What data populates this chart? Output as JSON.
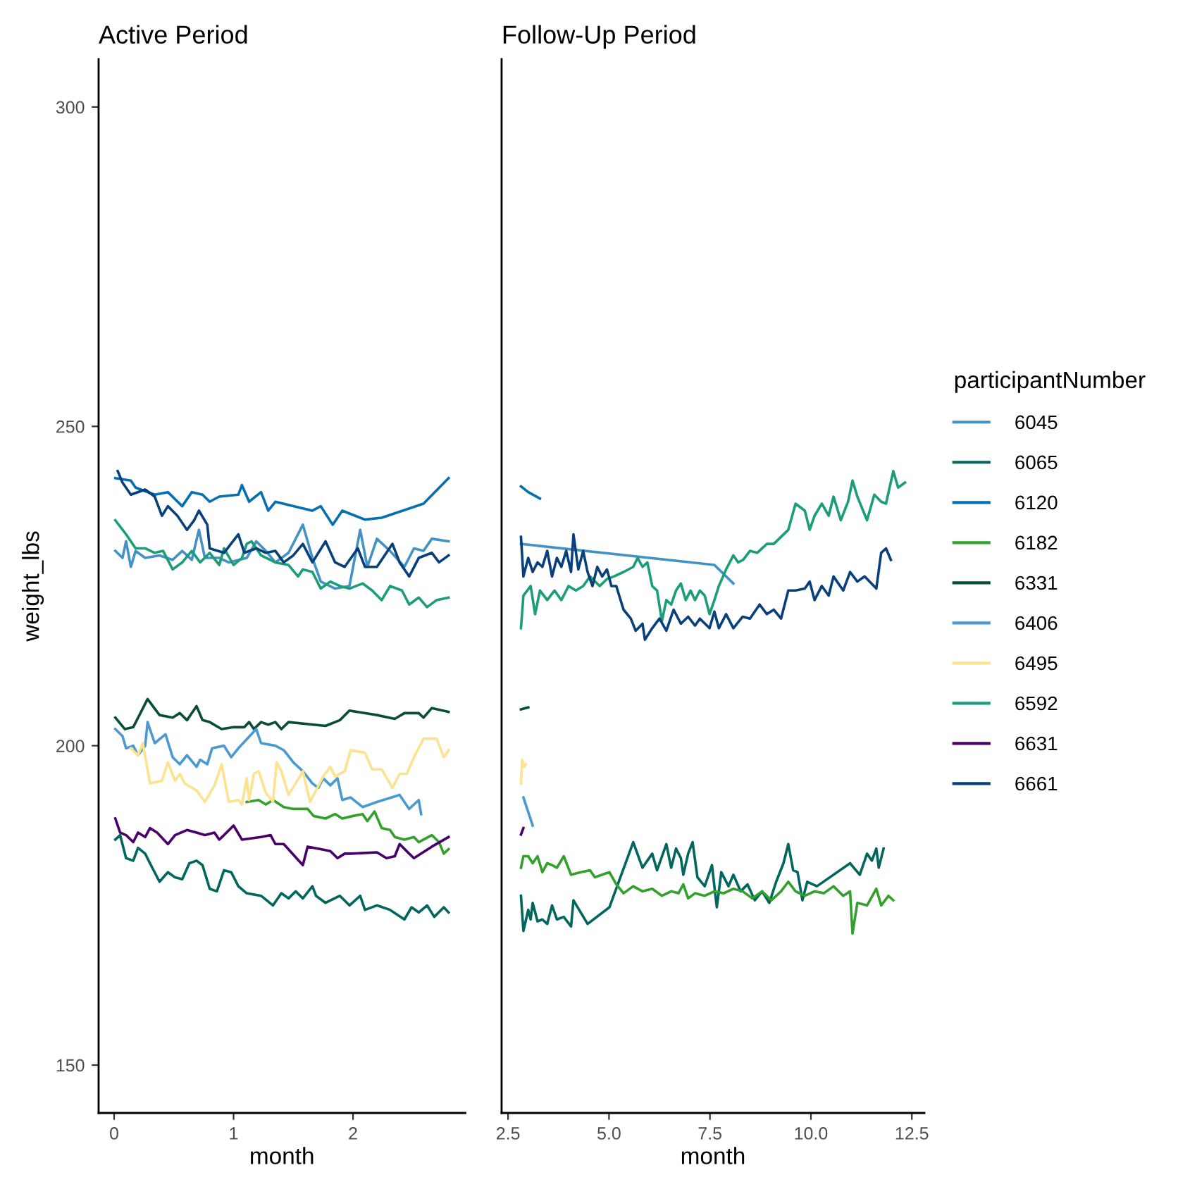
{
  "chart_data": [
    {
      "type": "line",
      "title": "Active Period",
      "xlabel": "month",
      "ylabel": "weight_lbs",
      "xlim": [
        -0.13,
        2.94
      ],
      "xticks": [
        0,
        1,
        2
      ],
      "ylim": [
        142.5,
        307.5
      ],
      "yticks": [
        150,
        200,
        250,
        300
      ],
      "grid": false,
      "legend": "right",
      "legend_title": "participantNumber",
      "series": [
        {
          "name": "6045",
          "color": "#4292c6",
          "x": [
            0.01,
            0.07,
            0.1,
            0.14,
            0.18,
            0.26,
            0.38,
            0.49,
            0.57,
            0.65,
            0.71,
            0.76,
            0.88,
            0.96,
            1.11,
            1.19,
            1.27,
            1.35,
            1.46,
            1.58,
            1.66,
            1.73,
            1.85,
            1.97,
            2.06,
            2.12,
            2.2,
            2.31,
            2.43,
            2.51,
            2.59,
            2.66,
            2.8
          ],
          "values": [
            230.5,
            229.4,
            232.0,
            228.0,
            230.5,
            229.4,
            229.8,
            229.1,
            230.5,
            229.1,
            233.8,
            229.4,
            229.4,
            228.7,
            229.4,
            232.0,
            230.5,
            228.7,
            230.2,
            234.6,
            229.4,
            225.7,
            224.6,
            225.0,
            233.8,
            228.0,
            232.4,
            230.5,
            228.0,
            230.9,
            230.5,
            232.4,
            232.0
          ]
        },
        {
          "name": "6065",
          "color": "#01665e",
          "x": [
            0.01,
            0.05,
            0.1,
            0.16,
            0.2,
            0.26,
            0.3,
            0.38,
            0.45,
            0.51,
            0.57,
            0.63,
            0.69,
            0.74,
            0.8,
            0.86,
            0.92,
            0.98,
            1.04,
            1.11,
            1.23,
            1.33,
            1.4,
            1.46,
            1.52,
            1.58,
            1.66,
            1.69,
            1.77,
            1.89,
            1.97,
            2.06,
            2.1,
            2.2,
            2.31,
            2.43,
            2.49,
            2.55,
            2.62,
            2.68,
            2.76,
            2.8
          ],
          "values": [
            185.3,
            186.0,
            182.4,
            182.0,
            184.0,
            183.1,
            181.6,
            178.7,
            180.2,
            179.4,
            179.1,
            181.6,
            182.0,
            181.3,
            177.6,
            177.2,
            180.5,
            180.2,
            178.0,
            176.9,
            176.5,
            175.0,
            176.9,
            176.1,
            177.2,
            176.1,
            178.0,
            176.5,
            175.4,
            176.5,
            175.0,
            176.5,
            174.3,
            175.0,
            174.3,
            172.8,
            174.7,
            173.9,
            175.0,
            173.2,
            174.7,
            173.9
          ]
        },
        {
          "name": "6120",
          "color": "#0570b0",
          "x": [
            0.01,
            0.14,
            0.18,
            0.34,
            0.45,
            0.57,
            0.65,
            0.74,
            0.8,
            0.88,
            1.04,
            1.07,
            1.13,
            1.23,
            1.29,
            1.35,
            1.5,
            1.66,
            1.73,
            1.83,
            1.91,
            2.1,
            2.24,
            2.59,
            2.8
          ],
          "values": [
            241.9,
            241.5,
            240.4,
            239.3,
            239.7,
            237.5,
            239.7,
            239.3,
            238.2,
            239.0,
            239.3,
            240.8,
            238.2,
            239.7,
            236.8,
            238.2,
            237.5,
            236.8,
            237.5,
            234.6,
            236.8,
            235.4,
            235.7,
            237.9,
            241.9
          ]
        },
        {
          "name": "6182",
          "color": "#33a02c",
          "x": [
            1.11,
            1.21,
            1.27,
            1.33,
            1.42,
            1.5,
            1.62,
            1.67,
            1.77,
            1.85,
            1.91,
            2.0,
            2.08,
            2.12,
            2.18,
            2.24,
            2.31,
            2.35,
            2.43,
            2.51,
            2.55,
            2.59,
            2.66,
            2.72,
            2.76,
            2.8
          ],
          "values": [
            191.2,
            191.5,
            190.8,
            191.5,
            190.4,
            190.1,
            190.1,
            189.0,
            188.6,
            189.3,
            188.6,
            189.0,
            189.3,
            188.2,
            189.7,
            187.1,
            186.8,
            185.7,
            185.3,
            185.7,
            184.9,
            185.3,
            186.0,
            184.9,
            183.1,
            183.8
          ]
        },
        {
          "name": "6331",
          "color": "#0a4d35",
          "x": [
            0.01,
            0.09,
            0.16,
            0.28,
            0.38,
            0.49,
            0.55,
            0.61,
            0.69,
            0.74,
            0.8,
            0.9,
            1.0,
            1.09,
            1.13,
            1.17,
            1.23,
            1.29,
            1.35,
            1.4,
            1.46,
            1.77,
            1.89,
            1.97,
            2.2,
            2.35,
            2.43,
            2.55,
            2.59,
            2.66,
            2.8
          ],
          "values": [
            204.4,
            202.6,
            202.9,
            207.3,
            204.8,
            204.4,
            205.1,
            204.0,
            206.2,
            204.0,
            203.7,
            202.6,
            202.9,
            202.9,
            203.7,
            202.6,
            203.7,
            203.3,
            203.7,
            202.6,
            203.7,
            203.1,
            204.0,
            205.5,
            204.8,
            204.2,
            205.1,
            205.1,
            204.4,
            205.9,
            205.3
          ]
        },
        {
          "name": "6406",
          "color": "#4a9ad1",
          "x": [
            0.01,
            0.07,
            0.1,
            0.16,
            0.2,
            0.26,
            0.28,
            0.34,
            0.43,
            0.49,
            0.55,
            0.61,
            0.69,
            0.72,
            0.78,
            0.82,
            0.92,
            0.98,
            1.04,
            1.19,
            1.23,
            1.35,
            1.42,
            1.5,
            1.58,
            1.66,
            1.71,
            1.75,
            1.81,
            1.87,
            1.91,
            1.98,
            2.08,
            2.2,
            2.39,
            2.47,
            2.55,
            2.57
          ],
          "values": [
            202.6,
            201.5,
            199.6,
            200.0,
            198.5,
            200.0,
            203.7,
            200.4,
            201.8,
            198.2,
            197.1,
            198.5,
            196.7,
            197.8,
            197.1,
            199.6,
            200.0,
            198.2,
            199.6,
            202.6,
            200.4,
            200.0,
            199.3,
            197.4,
            196.0,
            194.1,
            193.4,
            194.9,
            193.8,
            194.9,
            191.5,
            191.9,
            190.4,
            191.2,
            192.3,
            190.1,
            191.5,
            189.3
          ]
        },
        {
          "name": "6495",
          "color": "#fde28f",
          "x": [
            0.14,
            0.2,
            0.24,
            0.3,
            0.4,
            0.45,
            0.51,
            0.55,
            0.59,
            0.69,
            0.76,
            0.84,
            0.9,
            0.96,
            1.04,
            1.07,
            1.11,
            1.13,
            1.17,
            1.21,
            1.27,
            1.33,
            1.36,
            1.4,
            1.46,
            1.52,
            1.58,
            1.64,
            1.69,
            1.75,
            1.81,
            1.85,
            1.93,
            1.98,
            2.1,
            2.16,
            2.24,
            2.33,
            2.39,
            2.45,
            2.51,
            2.59,
            2.7,
            2.76,
            2.8
          ],
          "values": [
            199.6,
            198.5,
            200.4,
            194.1,
            194.5,
            197.4,
            194.5,
            195.6,
            194.1,
            193.0,
            191.2,
            193.8,
            197.1,
            191.2,
            191.5,
            190.8,
            194.9,
            191.5,
            195.6,
            196.0,
            192.6,
            191.2,
            197.4,
            196.0,
            192.3,
            194.1,
            196.0,
            191.2,
            193.0,
            195.2,
            196.7,
            195.2,
            196.0,
            199.3,
            198.9,
            196.3,
            196.3,
            193.4,
            195.6,
            195.6,
            198.2,
            201.1,
            201.1,
            198.2,
            199.3
          ]
        },
        {
          "name": "6592",
          "color": "#1b9e77",
          "x": [
            0.01,
            0.1,
            0.18,
            0.26,
            0.34,
            0.41,
            0.49,
            0.57,
            0.65,
            0.72,
            0.8,
            0.88,
            0.92,
            1.0,
            1.07,
            1.11,
            1.15,
            1.23,
            1.35,
            1.46,
            1.54,
            1.58,
            1.66,
            1.73,
            1.81,
            1.89,
            1.97,
            2.08,
            2.16,
            2.24,
            2.31,
            2.41,
            2.47,
            2.55,
            2.62,
            2.7,
            2.8
          ],
          "values": [
            235.3,
            233.1,
            230.9,
            230.9,
            230.2,
            230.5,
            227.6,
            228.7,
            230.5,
            228.7,
            230.2,
            228.3,
            230.9,
            228.3,
            229.4,
            231.6,
            232.0,
            229.8,
            228.7,
            228.3,
            226.5,
            227.6,
            227.2,
            224.6,
            225.7,
            225.0,
            224.6,
            225.4,
            224.3,
            222.8,
            225.0,
            224.3,
            222.1,
            223.2,
            221.7,
            222.8,
            223.2
          ]
        },
        {
          "name": "6631",
          "color": "#49006a",
          "x": [
            0.01,
            0.05,
            0.1,
            0.16,
            0.2,
            0.26,
            0.3,
            0.36,
            0.45,
            0.51,
            0.61,
            0.69,
            0.76,
            0.84,
            0.88,
            0.92,
            1.0,
            1.07,
            1.23,
            1.31,
            1.35,
            1.42,
            1.58,
            1.62,
            1.73,
            1.81,
            1.87,
            1.93,
            1.98,
            2.2,
            2.28,
            2.35,
            2.39,
            2.47,
            2.51,
            2.66,
            2.8
          ],
          "values": [
            188.6,
            186.4,
            186.0,
            184.9,
            186.4,
            185.7,
            187.1,
            186.4,
            184.6,
            186.0,
            186.8,
            186.4,
            186.0,
            186.4,
            185.3,
            186.0,
            187.5,
            185.3,
            185.7,
            186.0,
            184.6,
            184.6,
            181.3,
            184.2,
            183.8,
            183.5,
            182.4,
            183.1,
            183.1,
            183.3,
            182.4,
            182.7,
            184.6,
            183.1,
            182.4,
            184.2,
            185.7
          ]
        },
        {
          "name": "6661",
          "color": "#08407e",
          "x": [
            0.03,
            0.07,
            0.14,
            0.26,
            0.34,
            0.4,
            0.45,
            0.53,
            0.61,
            0.67,
            0.71,
            0.78,
            0.8,
            0.92,
            1.04,
            1.09,
            1.19,
            1.27,
            1.35,
            1.42,
            1.5,
            1.58,
            1.66,
            1.77,
            1.85,
            1.93,
            2.04,
            2.1,
            2.2,
            2.33,
            2.39,
            2.47,
            2.55,
            2.66,
            2.72,
            2.8
          ],
          "values": [
            243.0,
            241.2,
            239.3,
            240.1,
            239.0,
            236.0,
            237.5,
            236.0,
            233.8,
            235.3,
            236.8,
            234.6,
            230.9,
            230.2,
            233.1,
            230.2,
            230.9,
            230.2,
            230.5,
            228.7,
            229.8,
            231.6,
            228.7,
            232.0,
            228.7,
            228.0,
            230.9,
            228.0,
            228.0,
            231.6,
            228.7,
            226.5,
            229.4,
            230.2,
            228.7,
            229.8
          ]
        }
      ]
    },
    {
      "type": "line",
      "title": "Follow-Up Period",
      "xlabel": "month",
      "xlim": [
        2.34,
        12.81
      ],
      "xticks": [
        2.5,
        {
          "value": 5,
          "label": "5.0"
        },
        7.5,
        {
          "value": 10,
          "label": "10.0"
        },
        12.5
      ],
      "ylim": [
        142.5,
        307.5
      ],
      "yticks": [
        150,
        200,
        250,
        300
      ],
      "tick_labels": "x",
      "grid": false,
      "series": [
        {
          "name": "6045",
          "color": "#4292c6",
          "x": [
            2.82,
            7.61,
            8.08
          ],
          "values": [
            231.6,
            228.3,
            225.4
          ]
        },
        {
          "name": "6065",
          "color": "#01665e",
          "x": [
            2.82,
            2.88,
            3.0,
            3.06,
            3.11,
            3.23,
            3.35,
            3.47,
            3.59,
            3.71,
            3.88,
            4.06,
            4.12,
            4.47,
            5.01,
            5.6,
            5.83,
            6.07,
            6.19,
            6.42,
            6.54,
            6.66,
            6.78,
            6.84,
            6.96,
            7.07,
            7.19,
            7.37,
            7.55,
            7.67,
            7.78,
            7.96,
            8.08,
            8.26,
            8.43,
            8.61,
            8.79,
            8.97,
            9.14,
            9.32,
            9.44,
            9.56,
            9.67,
            9.79,
            9.91,
            10.15,
            10.97,
            11.21,
            11.39,
            11.51,
            11.62,
            11.68,
            11.8
          ],
          "values": [
            176.5,
            171.0,
            174.3,
            172.8,
            175.4,
            172.5,
            172.8,
            172.1,
            175.0,
            172.8,
            173.2,
            171.7,
            175.8,
            172.1,
            174.7,
            184.9,
            180.9,
            183.1,
            180.5,
            184.6,
            180.9,
            183.9,
            182.4,
            179.8,
            183.1,
            184.9,
            179.4,
            178.0,
            181.3,
            174.7,
            180.2,
            178.0,
            179.8,
            177.2,
            178.3,
            175.8,
            177.2,
            175.4,
            178.7,
            181.6,
            184.6,
            180.5,
            180.2,
            175.8,
            178.7,
            178.0,
            181.6,
            179.8,
            183.1,
            182.0,
            183.9,
            180.9,
            183.9
          ]
        },
        {
          "name": "6120",
          "color": "#0570b0",
          "x": [
            2.82,
            3.0,
            3.29
          ],
          "values": [
            240.6,
            239.7,
            238.7
          ]
        },
        {
          "name": "6182",
          "color": "#33a02c",
          "x": [
            2.82,
            2.88,
            3.0,
            3.11,
            3.23,
            3.35,
            3.47,
            3.59,
            3.71,
            3.88,
            4.06,
            4.3,
            4.53,
            4.65,
            4.83,
            5.01,
            5.18,
            5.36,
            5.6,
            5.83,
            6.07,
            6.31,
            6.54,
            6.72,
            6.84,
            6.96,
            7.13,
            7.37,
            7.61,
            7.84,
            8.08,
            8.31,
            8.55,
            8.79,
            9.02,
            9.26,
            9.44,
            9.62,
            9.85,
            10.09,
            10.32,
            10.56,
            10.8,
            10.97,
            11.03,
            11.15,
            11.39,
            11.62,
            11.74,
            11.92,
            12.04
          ],
          "values": [
            180.9,
            182.7,
            182.7,
            181.6,
            182.7,
            180.2,
            181.6,
            181.3,
            180.9,
            182.7,
            179.8,
            180.2,
            180.5,
            179.4,
            179.8,
            180.2,
            178.3,
            176.9,
            178.0,
            177.2,
            177.6,
            176.5,
            177.2,
            176.9,
            178.3,
            176.1,
            176.9,
            176.5,
            177.2,
            176.9,
            177.6,
            177.2,
            176.1,
            177.2,
            175.8,
            177.2,
            178.7,
            177.2,
            176.5,
            177.2,
            176.9,
            178.0,
            176.5,
            177.2,
            170.6,
            175.4,
            175.0,
            177.6,
            175.0,
            176.5,
            175.8
          ]
        },
        {
          "name": "6331",
          "color": "#0a4d35",
          "x": [
            2.82,
            3.0
          ],
          "values": [
            205.7,
            206.0
          ]
        },
        {
          "name": "6406",
          "color": "#4a9ad1",
          "x": [
            2.88,
            3.11
          ],
          "values": [
            191.9,
            187.5
          ]
        },
        {
          "name": "6495",
          "color": "#fde28f",
          "x": [
            2.82,
            2.85,
            2.9,
            2.94
          ],
          "values": [
            194.1,
            197.8,
            196.7,
            197.1
          ]
        },
        {
          "name": "6592",
          "color": "#1b9e77",
          "x": [
            2.82,
            2.88,
            3.06,
            3.17,
            3.29,
            3.47,
            3.65,
            3.82,
            4.0,
            4.18,
            4.36,
            4.53,
            4.77,
            4.95,
            5.12,
            5.36,
            5.6,
            5.71,
            5.83,
            5.95,
            6.07,
            6.19,
            6.31,
            6.42,
            6.54,
            6.66,
            6.78,
            6.9,
            7.02,
            7.13,
            7.25,
            7.37,
            7.49,
            7.61,
            7.72,
            7.9,
            8.08,
            8.2,
            8.32,
            8.49,
            8.67,
            8.91,
            9.08,
            9.26,
            9.44,
            9.62,
            9.85,
            9.97,
            10.09,
            10.27,
            10.44,
            10.56,
            10.74,
            10.92,
            11.03,
            11.15,
            11.39,
            11.57,
            11.74,
            11.86,
            12.04,
            12.16,
            12.33
          ],
          "values": [
            218.4,
            223.5,
            225.0,
            220.6,
            224.3,
            222.8,
            224.3,
            222.8,
            225.0,
            224.3,
            225.0,
            226.5,
            225.0,
            226.1,
            226.5,
            227.2,
            228.0,
            229.4,
            228.0,
            228.7,
            225.0,
            224.3,
            219.5,
            222.8,
            222.1,
            224.3,
            225.4,
            222.8,
            224.3,
            222.8,
            224.3,
            223.5,
            220.6,
            222.8,
            225.0,
            227.6,
            229.8,
            228.7,
            229.1,
            230.5,
            230.2,
            231.6,
            231.6,
            232.7,
            233.8,
            237.9,
            236.8,
            233.8,
            236.0,
            237.9,
            236.0,
            239.0,
            235.3,
            238.2,
            241.5,
            239.0,
            235.3,
            239.3,
            238.2,
            237.9,
            243.0,
            240.4,
            241.2
          ]
        },
        {
          "name": "6631",
          "color": "#49006a",
          "x": [
            2.82,
            2.88
          ],
          "values": [
            186.1,
            187.1
          ]
        },
        {
          "name": "6661",
          "color": "#08407e",
          "x": [
            2.82,
            2.88,
            3.0,
            3.11,
            3.23,
            3.35,
            3.47,
            3.59,
            3.71,
            3.82,
            3.94,
            4.06,
            4.12,
            4.24,
            4.36,
            4.47,
            4.59,
            4.71,
            4.83,
            4.95,
            5.06,
            5.18,
            5.36,
            5.54,
            5.66,
            5.83,
            5.89,
            6.07,
            6.25,
            6.42,
            6.6,
            6.78,
            6.96,
            7.13,
            7.25,
            7.49,
            7.61,
            7.72,
            7.9,
            8.08,
            8.31,
            8.49,
            8.73,
            8.91,
            9.08,
            9.26,
            9.44,
            9.62,
            9.85,
            9.97,
            10.09,
            10.27,
            10.44,
            10.56,
            10.8,
            10.97,
            11.15,
            11.33,
            11.62,
            11.74,
            11.86,
            11.98
          ],
          "values": [
            232.7,
            226.5,
            229.4,
            227.2,
            228.7,
            228.0,
            230.5,
            226.5,
            229.4,
            228.0,
            230.5,
            227.2,
            233.1,
            227.6,
            230.5,
            227.2,
            225.0,
            228.0,
            226.5,
            227.6,
            225.0,
            225.0,
            221.3,
            219.9,
            218.0,
            219.1,
            216.6,
            218.4,
            219.9,
            218.0,
            221.3,
            219.1,
            220.2,
            218.8,
            219.9,
            218.4,
            221.0,
            218.4,
            220.6,
            218.4,
            220.2,
            219.9,
            222.1,
            220.6,
            221.3,
            219.9,
            224.3,
            224.3,
            224.6,
            225.7,
            222.8,
            225.0,
            223.5,
            226.5,
            224.3,
            227.2,
            225.7,
            226.5,
            224.6,
            230.2,
            230.9,
            229.1
          ]
        }
      ]
    }
  ]
}
